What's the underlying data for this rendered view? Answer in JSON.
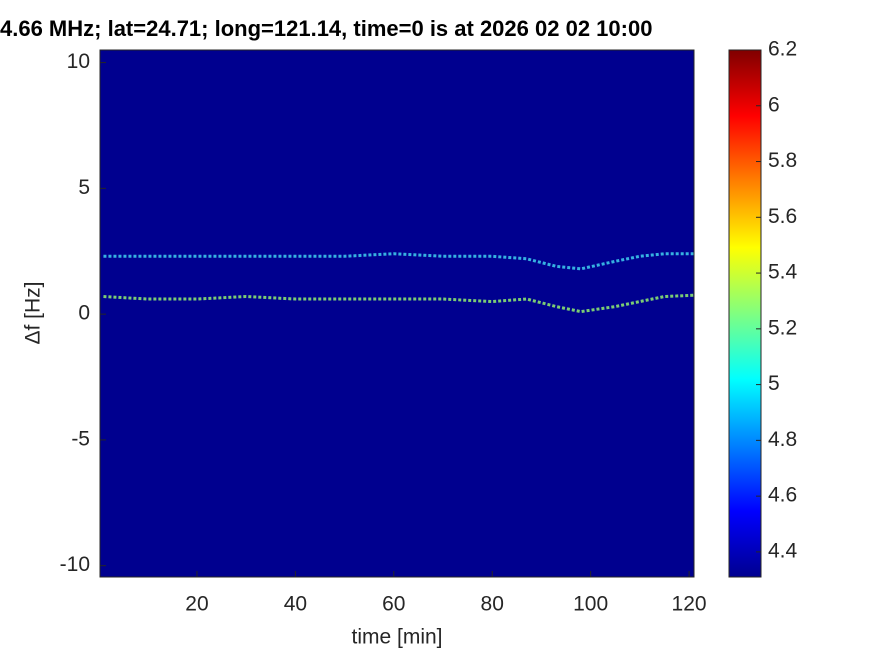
{
  "chart_data": {
    "type": "spectrogram",
    "title": "4.66 MHz;  lat=24.71; long=121.14, time=0 is at 2026 02 02 10:00",
    "x_label": "time [min]",
    "y_label": "Δf [Hz]",
    "x": [
      1,
      10,
      20,
      30,
      40,
      50,
      60,
      70,
      80,
      87,
      93,
      98,
      105,
      110,
      115,
      121
    ],
    "series": [
      {
        "color": "#40d0f0",
        "values": [
          2.3,
          2.3,
          2.3,
          2.3,
          2.3,
          2.3,
          2.4,
          2.3,
          2.3,
          2.2,
          1.9,
          1.8,
          2.1,
          2.3,
          2.4,
          2.4
        ]
      },
      {
        "color": "#90f070",
        "values": [
          0.7,
          0.6,
          0.6,
          0.7,
          0.6,
          0.6,
          0.6,
          0.6,
          0.5,
          0.6,
          0.3,
          0.1,
          0.3,
          0.5,
          0.7,
          0.75
        ]
      }
    ],
    "background": "#00008f",
    "xlim": [
      0.3,
      121
    ],
    "ylim": [
      -10.45,
      10.5
    ],
    "xticks": [
      20,
      40,
      60,
      80,
      100,
      120
    ],
    "yticks": [
      -10,
      -5,
      0,
      5,
      10
    ],
    "colormap": [
      "#00008f",
      "#0000ff",
      "#0080ff",
      "#00ffff",
      "#80ff80",
      "#ffff00",
      "#ff8000",
      "#ff0000",
      "#800000"
    ],
    "clim": [
      4.31,
      6.2
    ],
    "cticks": [
      4.4,
      4.6,
      4.8,
      5,
      5.2,
      5.4,
      5.6,
      5.8,
      6,
      6.2
    ]
  }
}
